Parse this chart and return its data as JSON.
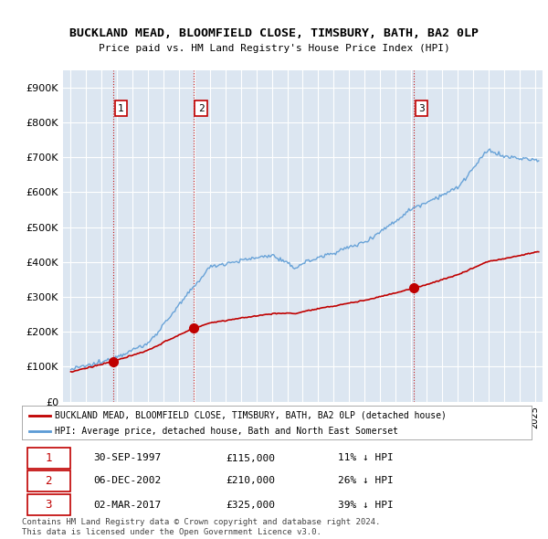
{
  "title": "BUCKLAND MEAD, BLOOMFIELD CLOSE, TIMSBURY, BATH, BA2 0LP",
  "subtitle": "Price paid vs. HM Land Registry's House Price Index (HPI)",
  "ylabel_values": [
    0,
    100000,
    200000,
    300000,
    400000,
    500000,
    600000,
    700000,
    800000,
    900000
  ],
  "ylim": [
    0,
    950000
  ],
  "xlim_start": 1994.5,
  "xlim_end": 2025.5,
  "sale_dates": [
    1997.75,
    2002.92,
    2017.17
  ],
  "sale_prices": [
    115000,
    210000,
    325000
  ],
  "sale_labels": [
    "1",
    "2",
    "3"
  ],
  "legend_red": "BUCKLAND MEAD, BLOOMFIELD CLOSE, TIMSBURY, BATH, BA2 0LP (detached house)",
  "legend_blue": "HPI: Average price, detached house, Bath and North East Somerset",
  "table_rows": [
    [
      "1",
      "30-SEP-1997",
      "£115,000",
      "11% ↓ HPI"
    ],
    [
      "2",
      "06-DEC-2002",
      "£210,000",
      "26% ↓ HPI"
    ],
    [
      "3",
      "02-MAR-2017",
      "£325,000",
      "39% ↓ HPI"
    ]
  ],
  "footnote": "Contains HM Land Registry data © Crown copyright and database right 2024.\nThis data is licensed under the Open Government Licence v3.0.",
  "hpi_color": "#5b9bd5",
  "price_color": "#c00000",
  "vline_color": "#c00000",
  "bg_color": "#ffffff",
  "chart_bg": "#dce6f1",
  "grid_color": "#ffffff"
}
